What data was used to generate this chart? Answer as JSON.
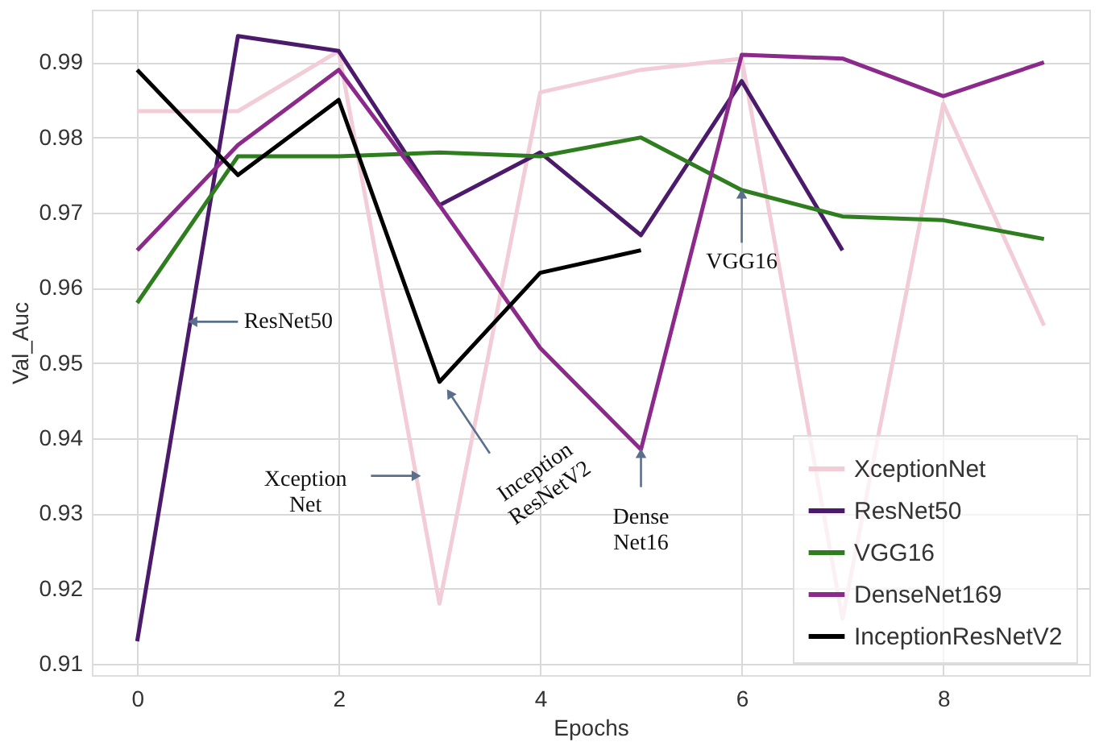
{
  "chart_data": {
    "type": "line",
    "xlabel": "Epochs",
    "ylabel": "Val_Auc",
    "x": [
      0,
      1,
      2,
      3,
      4,
      5,
      6,
      7,
      8,
      9
    ],
    "series": [
      {
        "name": "XceptionNet",
        "color": "#f2ccd6",
        "values": [
          0.9835,
          0.9835,
          0.9915,
          0.918,
          0.986,
          0.989,
          0.9905,
          0.916,
          0.9845,
          0.955
        ]
      },
      {
        "name": "ResNet50",
        "color": "#4b1a6b",
        "values": [
          0.913,
          0.9935,
          0.9915,
          0.971,
          0.978,
          0.967,
          0.9875,
          0.965,
          null,
          null
        ]
      },
      {
        "name": "VGG16",
        "color": "#2e7d1f",
        "values": [
          0.958,
          0.9775,
          0.9775,
          0.978,
          0.9775,
          0.98,
          0.973,
          0.9695,
          0.969,
          0.9665
        ]
      },
      {
        "name": "DenseNet169",
        "color": "#8b2a8b",
        "values": [
          0.965,
          0.979,
          0.989,
          0.971,
          0.952,
          0.9385,
          0.991,
          0.9905,
          0.9855,
          0.99
        ]
      },
      {
        "name": "InceptionResNetV2",
        "color": "#000000",
        "values": [
          0.989,
          0.975,
          0.985,
          0.9475,
          0.962,
          0.965,
          null,
          null,
          null,
          null
        ]
      }
    ],
    "xlim": [
      -0.45,
      9.45
    ],
    "ylim": [
      0.9085,
      0.997
    ],
    "xticks": [
      0,
      2,
      4,
      6,
      8
    ],
    "yticks": [
      0.91,
      0.92,
      0.93,
      0.94,
      0.95,
      0.96,
      0.97,
      0.98,
      0.99
    ],
    "grid": true,
    "legend": "bottom right",
    "marker": "none",
    "line_style": "solid",
    "annotations": [
      {
        "text": "ResNet50",
        "x": 0.55,
        "y": 0.9555
      },
      {
        "text": "Xception Net",
        "x": 2.77,
        "y": 0.935
      },
      {
        "text": "Inception ResNetV2",
        "x": 3.1,
        "y": 0.946
      },
      {
        "text": "Dense Net16",
        "x": 5,
        "y": 0.938
      },
      {
        "text": "VGG16",
        "x": 6,
        "y": 0.9725
      }
    ]
  }
}
